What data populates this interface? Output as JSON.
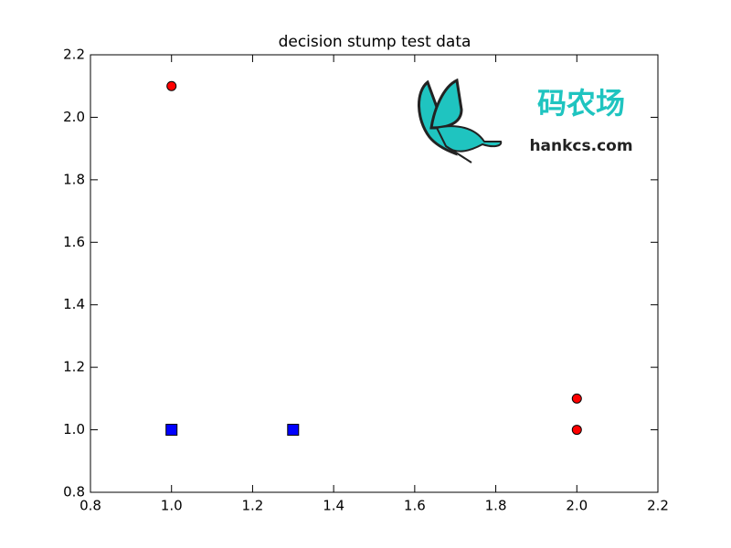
{
  "chart_data": {
    "type": "scatter",
    "title": "decision stump test data",
    "series": [
      {
        "color": "#ff0000",
        "marker": "circle",
        "x": [
          1.0,
          2.0,
          2.0
        ],
        "values": [
          2.1,
          1.1,
          1.0
        ]
      },
      {
        "color": "#0000ff",
        "marker": "square",
        "x": [
          1.0,
          1.3
        ],
        "values": [
          1.0,
          1.0
        ]
      }
    ],
    "xlim": [
      0.8,
      2.2
    ],
    "xticks": [
      0.8,
      {
        "value": 1,
        "label": "1.0"
      },
      1.2,
      1.4,
      1.6,
      1.8,
      {
        "value": 2,
        "label": "2.0"
      },
      2.2
    ],
    "ylim": [
      0.8,
      2.2
    ],
    "yticks": [
      0.8,
      {
        "value": 1,
        "label": "1.0"
      },
      1.2,
      1.4,
      1.6,
      1.8,
      {
        "value": 2,
        "label": "2.0"
      },
      2.2
    ],
    "grid": false,
    "watermark": {
      "name": "码农场",
      "site": "hankcs.com"
    }
  }
}
